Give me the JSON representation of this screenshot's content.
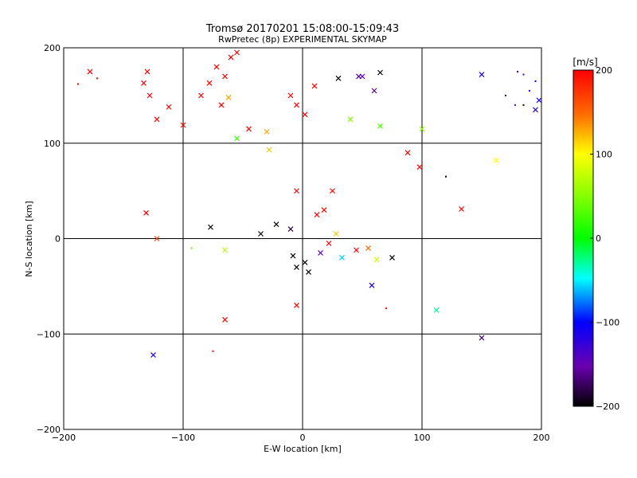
{
  "chart_data": {
    "type": "scatter",
    "title": "Tromsø 20170201 15:08:00-15:09:43",
    "subtitle": "RwPretec (8p) EXPERIMENTAL SKYMAP",
    "xlabel": "E-W location [km]",
    "ylabel": "N-S location [km]",
    "xlim": [
      -200,
      200
    ],
    "ylim": [
      -200,
      200
    ],
    "xticks": [
      -200,
      -100,
      0,
      100,
      200
    ],
    "yticks": [
      -200,
      -100,
      0,
      100,
      200
    ],
    "grid": true,
    "colorbar": {
      "label": "[m/s]",
      "range": [
        -200,
        200
      ],
      "ticks": [
        200,
        100,
        0,
        -100,
        -200
      ],
      "colormap": "rainbow: black(-200) purple blue cyan green yellow orange red(200)"
    },
    "marker_styles": {
      "x": "cross",
      "d": "dot"
    },
    "points": [
      {
        "x": -178,
        "y": 175,
        "v": 200,
        "m": "x"
      },
      {
        "x": -172,
        "y": 168,
        "v": 200,
        "m": "d"
      },
      {
        "x": -188,
        "y": 162,
        "v": 200,
        "m": "d"
      },
      {
        "x": -130,
        "y": 175,
        "v": 200,
        "m": "x"
      },
      {
        "x": -133,
        "y": 163,
        "v": 200,
        "m": "x"
      },
      {
        "x": -128,
        "y": 150,
        "v": 200,
        "m": "x"
      },
      {
        "x": -112,
        "y": 138,
        "v": 200,
        "m": "x"
      },
      {
        "x": -122,
        "y": 125,
        "v": 200,
        "m": "x"
      },
      {
        "x": -100,
        "y": 119,
        "v": 200,
        "m": "x"
      },
      {
        "x": -72,
        "y": 180,
        "v": 200,
        "m": "x"
      },
      {
        "x": -60,
        "y": 190,
        "v": 200,
        "m": "x"
      },
      {
        "x": -55,
        "y": 195,
        "v": 200,
        "m": "x"
      },
      {
        "x": -65,
        "y": 170,
        "v": 200,
        "m": "x"
      },
      {
        "x": -78,
        "y": 163,
        "v": 200,
        "m": "x"
      },
      {
        "x": -85,
        "y": 150,
        "v": 200,
        "m": "x"
      },
      {
        "x": -68,
        "y": 140,
        "v": 200,
        "m": "x"
      },
      {
        "x": -62,
        "y": 148,
        "v": 130,
        "m": "x"
      },
      {
        "x": -45,
        "y": 115,
        "v": 200,
        "m": "x"
      },
      {
        "x": -30,
        "y": 112,
        "v": 130,
        "m": "x"
      },
      {
        "x": -28,
        "y": 93,
        "v": 120,
        "m": "x"
      },
      {
        "x": -55,
        "y": 105,
        "v": 20,
        "m": "x"
      },
      {
        "x": -10,
        "y": 150,
        "v": 200,
        "m": "x"
      },
      {
        "x": -5,
        "y": 140,
        "v": 200,
        "m": "x"
      },
      {
        "x": 2,
        "y": 130,
        "v": 200,
        "m": "x"
      },
      {
        "x": 10,
        "y": 160,
        "v": 200,
        "m": "x"
      },
      {
        "x": 30,
        "y": 168,
        "v": -200,
        "m": "x"
      },
      {
        "x": 47,
        "y": 170,
        "v": -130,
        "m": "x"
      },
      {
        "x": 50,
        "y": 170,
        "v": -150,
        "m": "x"
      },
      {
        "x": 65,
        "y": 174,
        "v": -200,
        "m": "x"
      },
      {
        "x": 60,
        "y": 155,
        "v": -160,
        "m": "x"
      },
      {
        "x": 40,
        "y": 125,
        "v": 50,
        "m": "x"
      },
      {
        "x": 65,
        "y": 118,
        "v": 30,
        "m": "x"
      },
      {
        "x": 100,
        "y": 115,
        "v": 60,
        "m": "x"
      },
      {
        "x": 88,
        "y": 90,
        "v": 200,
        "m": "x"
      },
      {
        "x": 98,
        "y": 75,
        "v": 200,
        "m": "x"
      },
      {
        "x": 150,
        "y": 172,
        "v": -110,
        "m": "x"
      },
      {
        "x": 162,
        "y": 82,
        "v": 100,
        "m": "x"
      },
      {
        "x": 195,
        "y": 135,
        "v": -120,
        "m": "x"
      },
      {
        "x": 198,
        "y": 145,
        "v": -110,
        "m": "x"
      },
      {
        "x": 133,
        "y": 31,
        "v": 200,
        "m": "x"
      },
      {
        "x": -131,
        "y": 27,
        "v": 200,
        "m": "x"
      },
      {
        "x": -122,
        "y": 0,
        "v": 170,
        "m": "x"
      },
      {
        "x": -65,
        "y": -12,
        "v": 70,
        "m": "x"
      },
      {
        "x": -77,
        "y": 12,
        "v": -200,
        "m": "x"
      },
      {
        "x": -35,
        "y": 5,
        "v": -200,
        "m": "x"
      },
      {
        "x": -22,
        "y": 15,
        "v": -200,
        "m": "x"
      },
      {
        "x": -10,
        "y": 10,
        "v": -180,
        "m": "x"
      },
      {
        "x": -5,
        "y": -30,
        "v": -200,
        "m": "x"
      },
      {
        "x": -8,
        "y": -18,
        "v": -200,
        "m": "x"
      },
      {
        "x": 2,
        "y": -25,
        "v": -200,
        "m": "x"
      },
      {
        "x": 5,
        "y": -35,
        "v": -200,
        "m": "x"
      },
      {
        "x": 15,
        "y": -15,
        "v": -150,
        "m": "x"
      },
      {
        "x": 22,
        "y": -5,
        "v": 200,
        "m": "x"
      },
      {
        "x": 28,
        "y": 5,
        "v": 120,
        "m": "x"
      },
      {
        "x": 33,
        "y": -20,
        "v": -60,
        "m": "x"
      },
      {
        "x": 45,
        "y": -12,
        "v": 200,
        "m": "x"
      },
      {
        "x": 55,
        "y": -10,
        "v": 150,
        "m": "x"
      },
      {
        "x": 62,
        "y": -22,
        "v": 80,
        "m": "x"
      },
      {
        "x": 75,
        "y": -20,
        "v": -200,
        "m": "x"
      },
      {
        "x": 12,
        "y": 25,
        "v": 200,
        "m": "x"
      },
      {
        "x": 18,
        "y": 30,
        "v": 200,
        "m": "x"
      },
      {
        "x": -5,
        "y": 50,
        "v": 200,
        "m": "x"
      },
      {
        "x": 25,
        "y": 50,
        "v": 200,
        "m": "x"
      },
      {
        "x": 58,
        "y": -49,
        "v": -120,
        "m": "x"
      },
      {
        "x": -5,
        "y": -70,
        "v": 200,
        "m": "x"
      },
      {
        "x": -65,
        "y": -85,
        "v": 200,
        "m": "x"
      },
      {
        "x": 112,
        "y": -75,
        "v": -30,
        "m": "x"
      },
      {
        "x": 150,
        "y": -104,
        "v": -170,
        "m": "x"
      },
      {
        "x": -125,
        "y": -122,
        "v": -120,
        "m": "x"
      },
      {
        "x": -75,
        "y": -118,
        "v": 200,
        "m": "d"
      },
      {
        "x": -93,
        "y": -10,
        "v": 40,
        "m": "d"
      },
      {
        "x": 70,
        "y": -73,
        "v": 200,
        "m": "d"
      },
      {
        "x": 185,
        "y": 172,
        "v": -130,
        "m": "d"
      },
      {
        "x": 180,
        "y": 175,
        "v": -120,
        "m": "d"
      },
      {
        "x": 190,
        "y": 155,
        "v": -110,
        "m": "d"
      },
      {
        "x": 195,
        "y": 165,
        "v": -100,
        "m": "d"
      },
      {
        "x": 185,
        "y": 140,
        "v": -200,
        "m": "d"
      },
      {
        "x": 178,
        "y": 140,
        "v": -150,
        "m": "d"
      },
      {
        "x": 170,
        "y": 150,
        "v": -180,
        "m": "d"
      },
      {
        "x": 120,
        "y": 65,
        "v": -200,
        "m": "d"
      }
    ]
  }
}
